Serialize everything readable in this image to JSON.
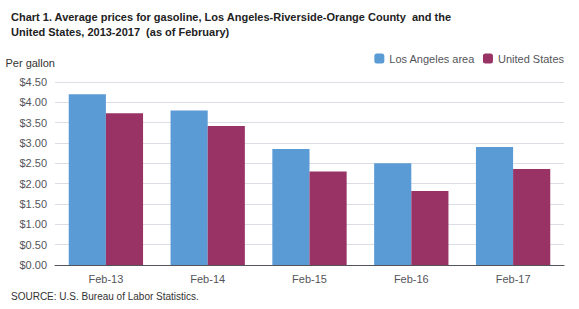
{
  "chart_data": {
    "type": "bar",
    "title": "Chart 1. Average prices for gasoline, Los Angeles-Riverside-Orange County  and the\nUnited States, 2013-2017  (as of February)",
    "ylabel": "Per gallon",
    "source": "SOURCE: U.S. Bureau of Labor Statistics.",
    "categories": [
      "Feb-13",
      "Feb-14",
      "Feb-15",
      "Feb-16",
      "Feb-17"
    ],
    "series": [
      {
        "name": "Los Angeles area",
        "color": "#5B9BD5",
        "values": [
          4.2,
          3.8,
          2.85,
          2.5,
          2.9
        ]
      },
      {
        "name": "United States",
        "color": "#993366",
        "values": [
          3.73,
          3.42,
          2.3,
          1.82,
          2.36
        ]
      }
    ],
    "ylim": [
      0,
      4.5
    ],
    "yticks": [
      {
        "value": 0.0,
        "label": "$0.00"
      },
      {
        "value": 0.5,
        "label": "$0.50"
      },
      {
        "value": 1.0,
        "label": "$1.00"
      },
      {
        "value": 1.5,
        "label": "$1.50"
      },
      {
        "value": 2.0,
        "label": "$2.00"
      },
      {
        "value": 2.5,
        "label": "$2.50"
      },
      {
        "value": 3.0,
        "label": "$3.00"
      },
      {
        "value": 3.5,
        "label": "$3.50"
      },
      {
        "value": 4.0,
        "label": "$4.00"
      },
      {
        "value": 4.5,
        "label": "$4.50"
      }
    ],
    "grid": true,
    "legend": "upper right"
  }
}
